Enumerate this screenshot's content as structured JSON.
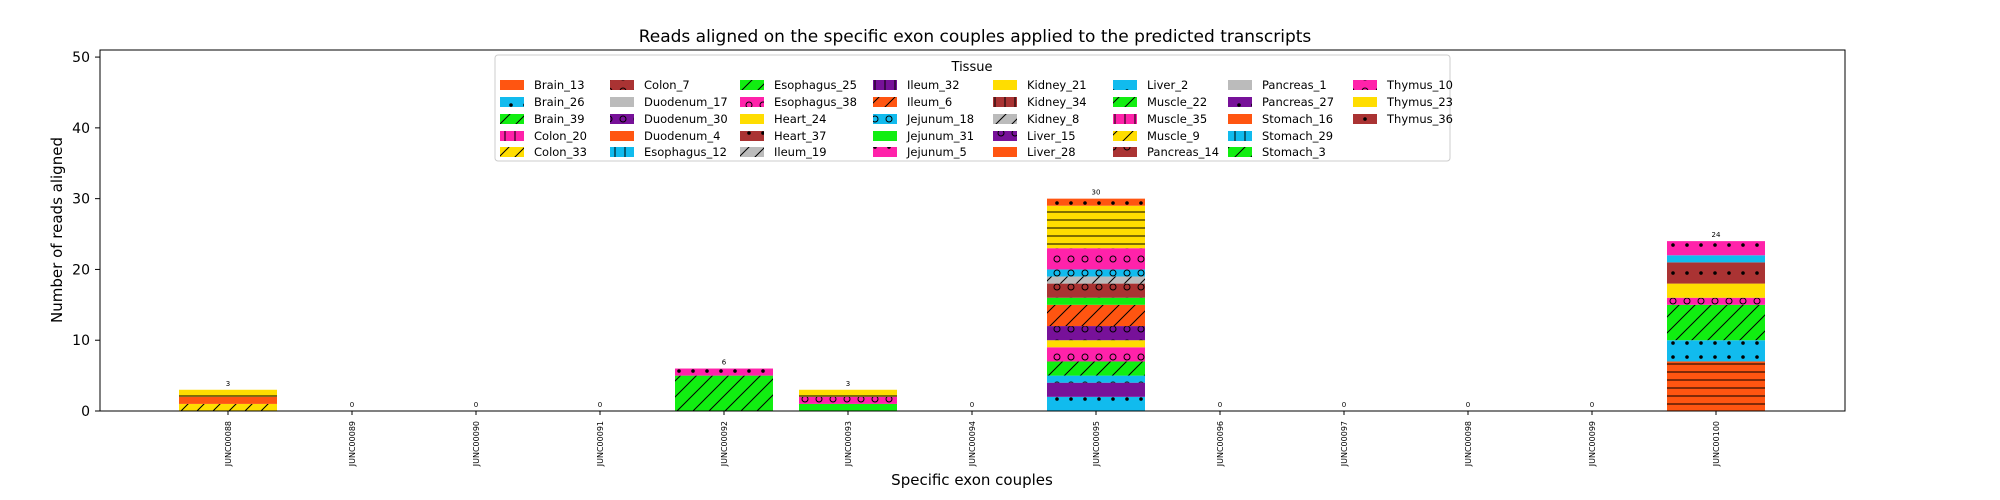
{
  "chart_data": {
    "type": "bar",
    "stacked": true,
    "title": "Reads aligned on the specific exon couples applied to the predicted transcripts",
    "xlabel": "Specific exon couples",
    "ylabel": "Number of reads aligned",
    "ylim": [
      0,
      51
    ],
    "yticks": [
      0,
      10,
      20,
      30,
      40,
      50
    ],
    "legend_title": "Tissue",
    "legend_position": "upper center",
    "grid": false,
    "categories": [
      "JUNC00088",
      "JUNC00089",
      "JUNC00090",
      "JUNC00091",
      "JUNC00092",
      "JUNC00093",
      "JUNC00094",
      "JUNC00095",
      "JUNC00096",
      "JUNC00097",
      "JUNC00098",
      "JUNC00099",
      "JUNC00100"
    ],
    "totals": [
      3,
      0,
      0,
      0,
      6,
      3,
      0,
      30,
      0,
      0,
      0,
      0,
      24
    ],
    "tissues": [
      {
        "name": "Brain_13",
        "color": "#ff5511",
        "pattern": "none"
      },
      {
        "name": "Brain_26",
        "color": "#11bbee",
        "pattern": "dots"
      },
      {
        "name": "Brain_39",
        "color": "#11ee11",
        "pattern": "diag"
      },
      {
        "name": "Colon_20",
        "color": "#ff22aa",
        "pattern": "vert"
      },
      {
        "name": "Colon_33",
        "color": "#ffdd00",
        "pattern": "diag"
      },
      {
        "name": "Colon_7",
        "color": "#aa3333",
        "pattern": "rings"
      },
      {
        "name": "Duodenum_17",
        "color": "#bbbbbb",
        "pattern": "none"
      },
      {
        "name": "Duodenum_30",
        "color": "#771199",
        "pattern": "rings"
      },
      {
        "name": "Duodenum_4",
        "color": "#ff5511",
        "pattern": "none"
      },
      {
        "name": "Esophagus_12",
        "color": "#11bbee",
        "pattern": "vert"
      },
      {
        "name": "Esophagus_25",
        "color": "#11ee11",
        "pattern": "diag"
      },
      {
        "name": "Esophagus_38",
        "color": "#ff22aa",
        "pattern": "rings"
      },
      {
        "name": "Heart_24",
        "color": "#ffdd00",
        "pattern": "none"
      },
      {
        "name": "Heart_37",
        "color": "#aa3333",
        "pattern": "dots"
      },
      {
        "name": "Ileum_19",
        "color": "#bbbbbb",
        "pattern": "diag"
      },
      {
        "name": "Ileum_32",
        "color": "#771199",
        "pattern": "vert"
      },
      {
        "name": "Ileum_6",
        "color": "#ff5511",
        "pattern": "diag"
      },
      {
        "name": "Jejunum_18",
        "color": "#11bbee",
        "pattern": "rings"
      },
      {
        "name": "Jejunum_31",
        "color": "#11ee11",
        "pattern": "none"
      },
      {
        "name": "Jejunum_5",
        "color": "#ff22aa",
        "pattern": "dots"
      },
      {
        "name": "Kidney_21",
        "color": "#ffdd00",
        "pattern": "none"
      },
      {
        "name": "Kidney_34",
        "color": "#aa3333",
        "pattern": "vert"
      },
      {
        "name": "Kidney_8",
        "color": "#bbbbbb",
        "pattern": "diag"
      },
      {
        "name": "Liver_15",
        "color": "#771199",
        "pattern": "rings"
      },
      {
        "name": "Liver_28",
        "color": "#ff5511",
        "pattern": "none"
      },
      {
        "name": "Liver_2",
        "color": "#11bbee",
        "pattern": "dots"
      },
      {
        "name": "Muscle_22",
        "color": "#11ee11",
        "pattern": "diag"
      },
      {
        "name": "Muscle_35",
        "color": "#ff22aa",
        "pattern": "vert"
      },
      {
        "name": "Muscle_9",
        "color": "#ffdd00",
        "pattern": "diag"
      },
      {
        "name": "Pancreas_14",
        "color": "#aa3333",
        "pattern": "rings"
      },
      {
        "name": "Pancreas_1",
        "color": "#bbbbbb",
        "pattern": "none"
      },
      {
        "name": "Pancreas_27",
        "color": "#771199",
        "pattern": "dots"
      },
      {
        "name": "Stomach_16",
        "color": "#ff5511",
        "pattern": "none"
      },
      {
        "name": "Stomach_29",
        "color": "#11bbee",
        "pattern": "vert"
      },
      {
        "name": "Stomach_3",
        "color": "#11ee11",
        "pattern": "diag"
      },
      {
        "name": "Thymus_10",
        "color": "#ff22aa",
        "pattern": "rings"
      },
      {
        "name": "Thymus_23",
        "color": "#ffdd00",
        "pattern": "none"
      },
      {
        "name": "Thymus_36",
        "color": "#aa3333",
        "pattern": "dots"
      }
    ],
    "bars": [
      {
        "category": "JUNC00088",
        "segments": [
          {
            "color": "#ffdd00",
            "pattern": "diag",
            "value": 1
          },
          {
            "color": "#ff5511",
            "pattern": "none",
            "value": 1
          },
          {
            "color": "#ffdd00",
            "pattern": "hline",
            "value": 1
          }
        ]
      },
      {
        "category": "JUNC00092",
        "segments": [
          {
            "color": "#11ee11",
            "pattern": "diag",
            "value": 5
          },
          {
            "color": "#ff22aa",
            "pattern": "dots",
            "value": 1
          }
        ]
      },
      {
        "category": "JUNC00093",
        "segments": [
          {
            "color": "#11ee11",
            "pattern": "none",
            "value": 1
          },
          {
            "color": "#ff22aa",
            "pattern": "rings",
            "value": 1
          },
          {
            "color": "#ffdd00",
            "pattern": "hline",
            "value": 1
          }
        ]
      },
      {
        "category": "JUNC00095",
        "segments": [
          {
            "color": "#11bbee",
            "pattern": "dots",
            "value": 2
          },
          {
            "color": "#771199",
            "pattern": "none",
            "value": 2
          },
          {
            "color": "#11bbee",
            "pattern": "rings",
            "value": 1
          },
          {
            "color": "#11ee11",
            "pattern": "diag",
            "value": 2
          },
          {
            "color": "#ff22aa",
            "pattern": "rings",
            "value": 2
          },
          {
            "color": "#ffdd00",
            "pattern": "none",
            "value": 1
          },
          {
            "color": "#771199",
            "pattern": "rings",
            "value": 2
          },
          {
            "color": "#ff5511",
            "pattern": "diag",
            "value": 3
          },
          {
            "color": "#11ee11",
            "pattern": "none",
            "value": 1
          },
          {
            "color": "#aa3333",
            "pattern": "rings",
            "value": 2
          },
          {
            "color": "#bbbbbb",
            "pattern": "diag",
            "value": 1
          },
          {
            "color": "#11bbee",
            "pattern": "rings",
            "value": 1
          },
          {
            "color": "#ff22aa",
            "pattern": "rings",
            "value": 3
          },
          {
            "color": "#ffdd00",
            "pattern": "hline",
            "value": 6
          },
          {
            "color": "#ff5511",
            "pattern": "dots",
            "value": 1
          }
        ]
      },
      {
        "category": "JUNC00100",
        "segments": [
          {
            "color": "#ff5511",
            "pattern": "hline",
            "value": 7
          },
          {
            "color": "#11bbee",
            "pattern": "dots",
            "value": 3
          },
          {
            "color": "#11ee11",
            "pattern": "diag",
            "value": 5
          },
          {
            "color": "#ff22aa",
            "pattern": "rings",
            "value": 1
          },
          {
            "color": "#ffdd00",
            "pattern": "none",
            "value": 2
          },
          {
            "color": "#aa3333",
            "pattern": "dots",
            "value": 3
          },
          {
            "color": "#11bbee",
            "pattern": "none",
            "value": 1
          },
          {
            "color": "#ff22aa",
            "pattern": "dots",
            "value": 2
          }
        ]
      }
    ]
  }
}
